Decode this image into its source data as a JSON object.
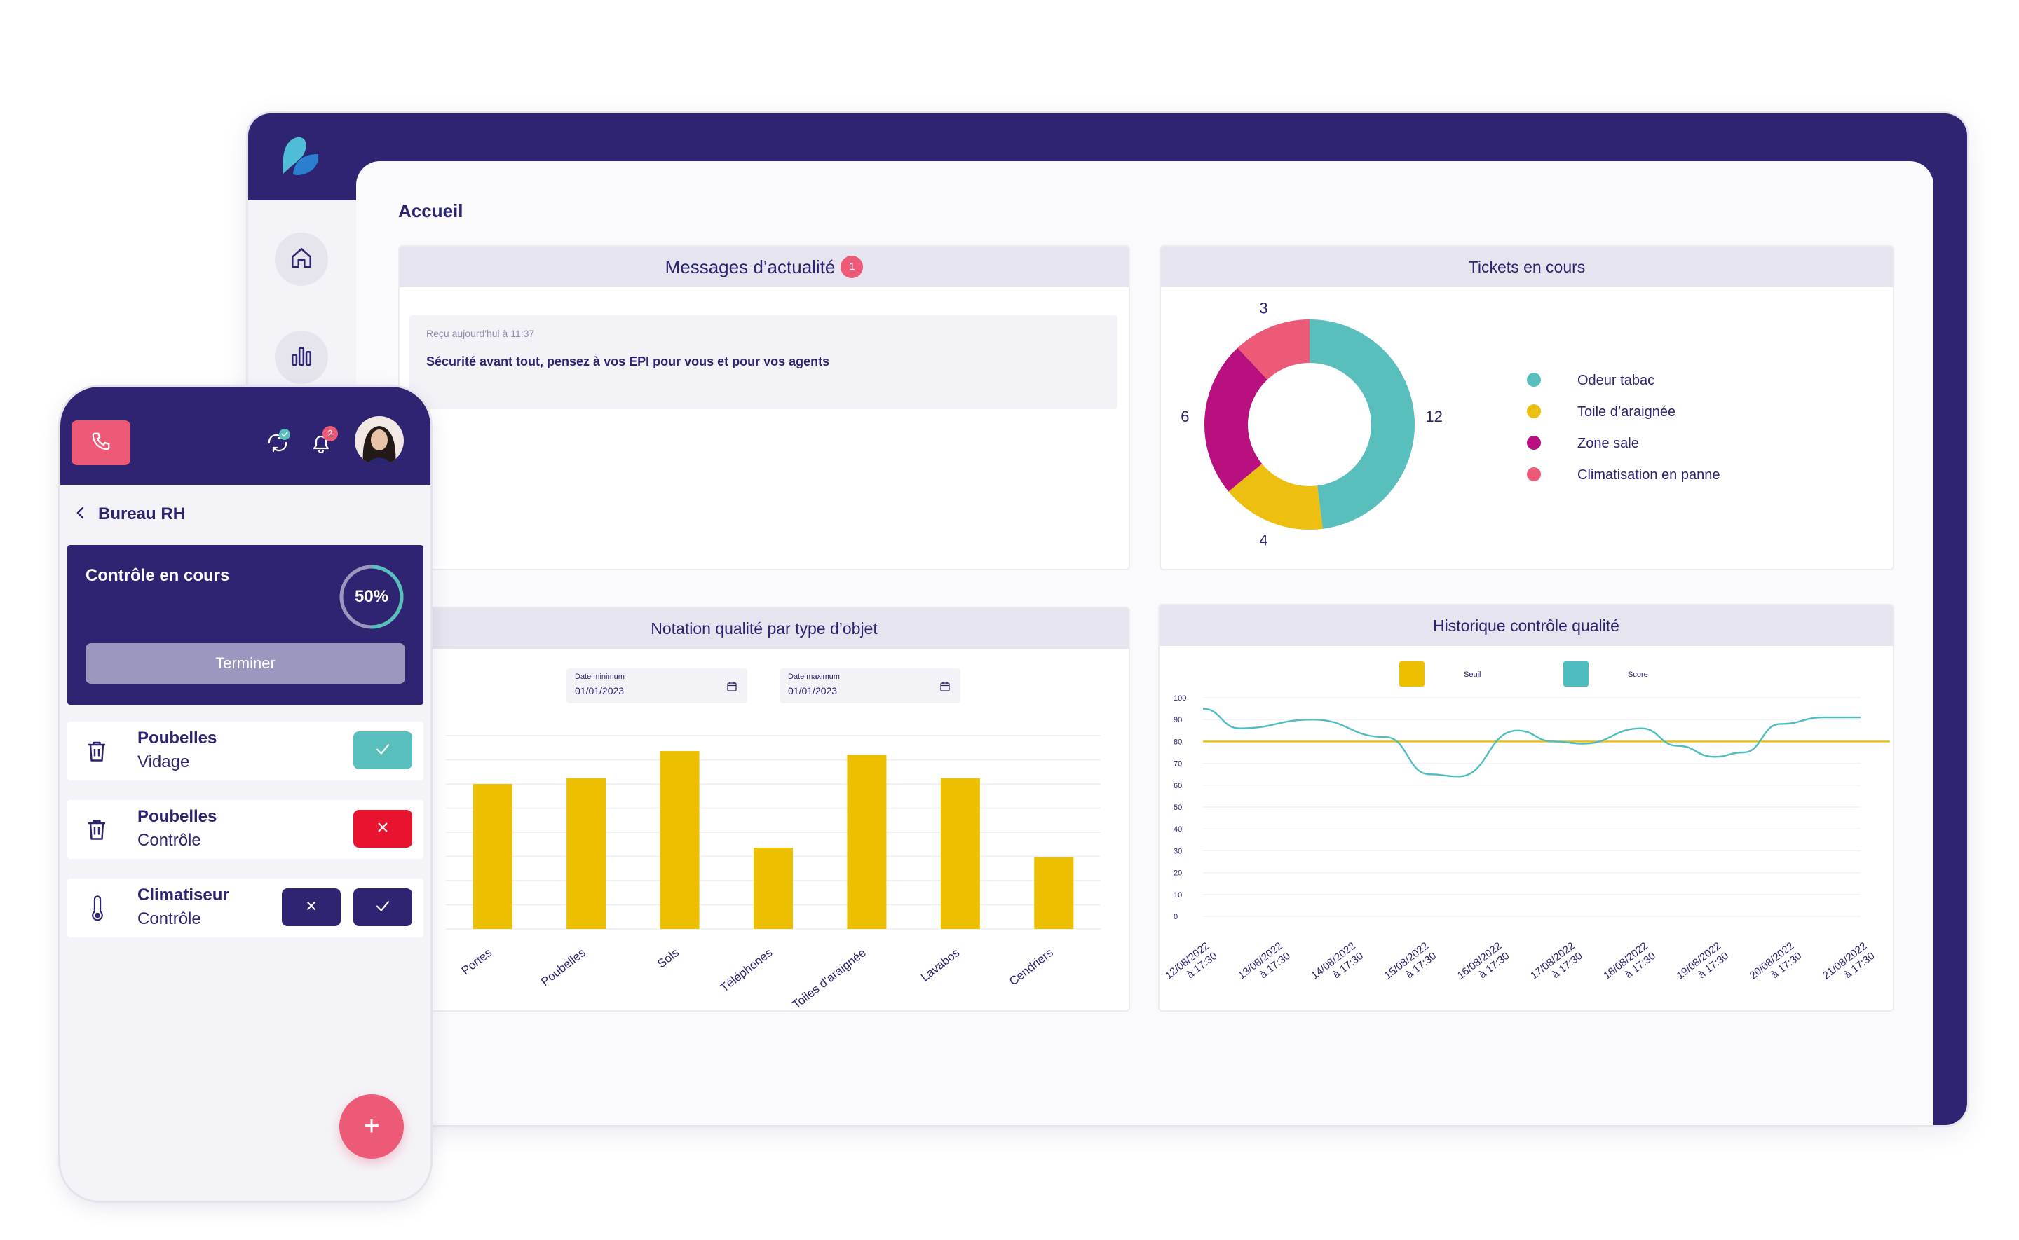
{
  "desktop": {
    "nav": [
      {
        "icon": "home-icon"
      },
      {
        "icon": "bar-chart-icon"
      }
    ],
    "page_title": "Accueil",
    "news": {
      "title": "Messages d’actualité",
      "badge": "1",
      "received": "Reçu aujourd'hui à 11:37",
      "message": "Sécurité avant tout, pensez à vos EPI pour vous et pour vos agents"
    },
    "tickets": {
      "title": "Tickets en cours",
      "chart_data": {
        "type": "pie",
        "labels": [
          "Odeur tabac",
          "Toile d’araignée",
          "Zone sale",
          "Climatisation en panne"
        ],
        "values": [
          12,
          4,
          6,
          3
        ],
        "value_labels": [
          "12",
          "4",
          "6",
          "3"
        ],
        "colors": [
          "#58bfbd",
          "#ecbf10",
          "#b8117f",
          "#ed5a78"
        ],
        "legend": "right",
        "donut": true
      }
    },
    "quality_by_type": {
      "title": "Notation qualité par type d’objet",
      "date_min_label": "Date minimum",
      "date_min_value": "01/01/2023",
      "date_max_label": "Date maximum",
      "date_max_value": "01/01/2023",
      "chart_data": {
        "type": "bar",
        "categories": [
          "Portes",
          "Poubelles",
          "Sols",
          "Téléphones",
          "Toiles d’araignée",
          "Lavabos",
          "Cendriers"
        ],
        "values": [
          75,
          78,
          92,
          42,
          90,
          78,
          37
        ],
        "ylim": [
          0,
          100
        ],
        "color": "#ecbf00",
        "grid": true
      }
    },
    "quality_history": {
      "title": "Historique contrôle qualité",
      "chart_data": {
        "type": "line",
        "x": [
          "12/08/2022 à 17:30",
          "13/08/2022 à 17:30",
          "14/08/2022 à 17:30",
          "15/08/2022 à 17:30",
          "16/08/2022 à 17:30",
          "17/08/2022 à 17:30",
          "18/08/2022 à 17:30",
          "19/08/2022 à 17:30",
          "20/08/2022 à 17:30",
          "21/08/2022 à 17:30"
        ],
        "x_tick_lines": [
          [
            "12/08/2022",
            "à 17:30"
          ],
          [
            "13/08/2022",
            "à 17:30"
          ],
          [
            "14/08/2022",
            "à 17:30"
          ],
          [
            "15/08/2022",
            "à 17:30"
          ],
          [
            "16/08/2022",
            "à 17:30"
          ],
          [
            "17/08/2022",
            "à 17:30"
          ],
          [
            "18/08/2022",
            "à 17:30"
          ],
          [
            "19/08/2022",
            "à 17:30"
          ],
          [
            "20/08/2022",
            "à 17:30"
          ],
          [
            "21/08/2022",
            "à 17:30"
          ]
        ],
        "yticks": [
          0,
          10,
          20,
          30,
          40,
          50,
          60,
          70,
          80,
          90,
          100
        ],
        "ylim": [
          0,
          100
        ],
        "series": [
          {
            "name": "Seuil",
            "color": "#ecbf00",
            "points": [
              [
                0,
                80
              ],
              [
                9.4,
                80
              ]
            ]
          },
          {
            "name": "Score",
            "color": "#4fbdbf",
            "points": [
              [
                0,
                95
              ],
              [
                0.5,
                86
              ],
              [
                1.5,
                90
              ],
              [
                2.5,
                82
              ],
              [
                3.1,
                65
              ],
              [
                3.5,
                64
              ],
              [
                4.3,
                85
              ],
              [
                4.8,
                80
              ],
              [
                5.2,
                79
              ],
              [
                6.0,
                86
              ],
              [
                6.5,
                78
              ],
              [
                7.0,
                73
              ],
              [
                7.4,
                75
              ],
              [
                7.9,
                88
              ],
              [
                8.5,
                91
              ],
              [
                9.0,
                91
              ]
            ]
          }
        ],
        "legend": "top",
        "grid": true
      }
    }
  },
  "phone": {
    "call_icon": "phone-icon",
    "sync_icon": "sync-icon",
    "bell_icon": "bell-icon",
    "notif_count": "2",
    "back_icon": "chevron-left-icon",
    "location": "Bureau RH",
    "control": {
      "title": "Contrôle en cours",
      "progress_label": "50%",
      "progress": 0.5,
      "finish_button": "Terminer"
    },
    "tasks": [
      {
        "icon": "trash-icon",
        "title": "Poubelles",
        "sub": "Vidage",
        "status": "done"
      },
      {
        "icon": "trash-icon",
        "title": "Poubelles",
        "sub": "Contrôle",
        "status": "failed"
      },
      {
        "icon": "thermometer-icon",
        "title": "Climatiseur",
        "sub": "Contrôle",
        "status": "pending"
      }
    ],
    "fab_label": "+"
  },
  "colors": {
    "primary": "#2e2472",
    "accent_pink": "#ed5a78",
    "teal": "#58bfbd",
    "yellow": "#ecbf00",
    "magenta": "#b8117f",
    "red": "#e8142f"
  }
}
